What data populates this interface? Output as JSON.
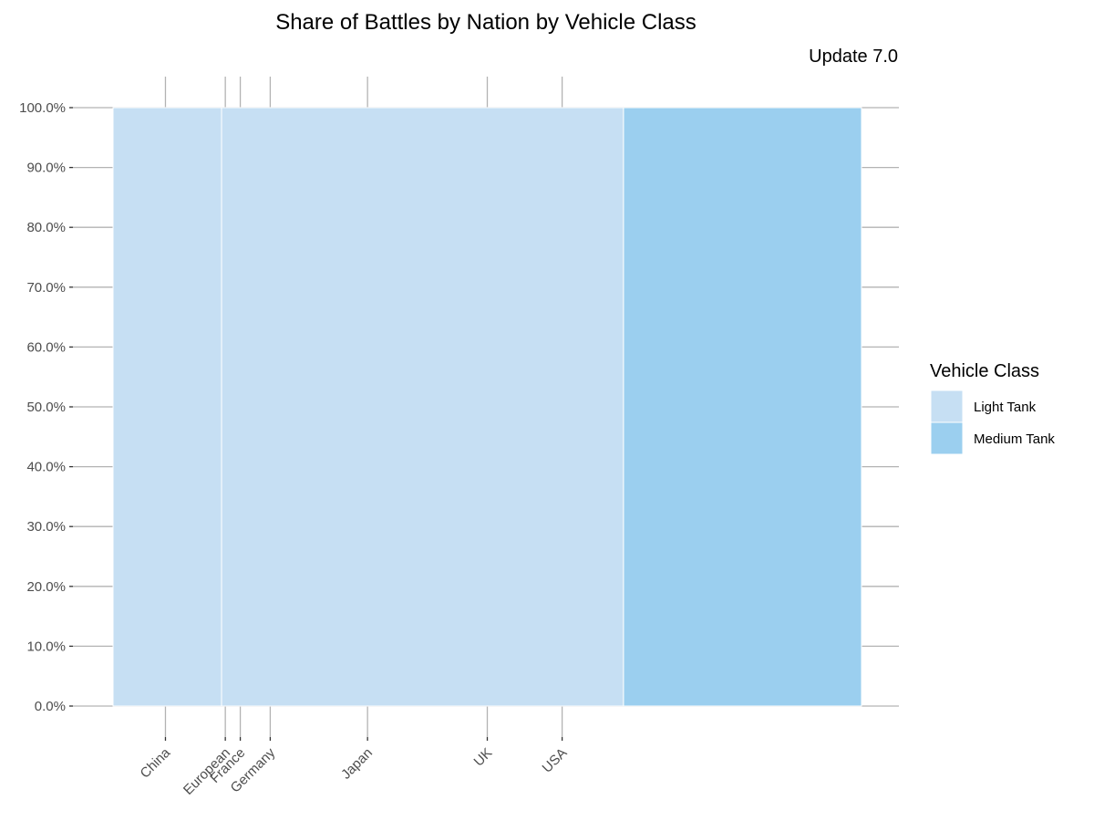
{
  "chart_data": {
    "type": "bar",
    "variant": "mosaic (100% stacked, variable width)",
    "title": "Share of Battles by Nation by Vehicle Class",
    "subtitle": "Update 7.0",
    "xlabel": "",
    "ylabel": "",
    "ylim": [
      0,
      1
    ],
    "y_ticks": [
      "0.0%",
      "10.0%",
      "20.0%",
      "30.0%",
      "40.0%",
      "50.0%",
      "60.0%",
      "70.0%",
      "80.0%",
      "90.0%",
      "100.0%"
    ],
    "x_ticks": [
      "China",
      "European",
      "France",
      "Germany",
      "Japan",
      "UK",
      "USA"
    ],
    "x_tick_positions": [
      0.07,
      0.15,
      0.17,
      0.21,
      0.34,
      0.5,
      0.6
    ],
    "segments": [
      {
        "x_start": 0.0,
        "x_end": 0.145,
        "y_start": 0,
        "y_end": 1,
        "class": "Light Tank"
      },
      {
        "x_start": 0.145,
        "x_end": 0.682,
        "y_start": 0,
        "y_end": 1,
        "class": "Light Tank"
      },
      {
        "x_start": 0.682,
        "x_end": 1.0,
        "y_start": 0,
        "y_end": 1,
        "class": "Medium Tank"
      }
    ],
    "legend": {
      "title": "Vehicle Class",
      "position": "right",
      "entries": [
        {
          "name": "Light Tank",
          "color": "#c6dff3"
        },
        {
          "name": "Medium Tank",
          "color": "#9bcfef"
        }
      ]
    },
    "grid": true,
    "colors": {
      "light_tank": "#c6dff3",
      "medium_tank": "#9bcfef",
      "gridline": "#b3b3b3",
      "tick_text": "#4d4d4d"
    }
  }
}
